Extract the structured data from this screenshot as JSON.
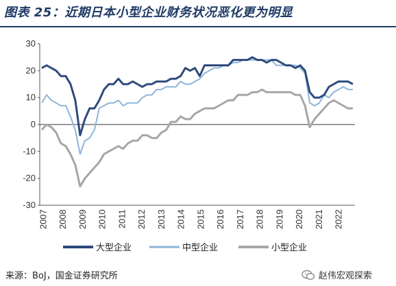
{
  "figure": {
    "title": "图表 25：近期日本小型企业财务状况恶化更为明显",
    "source": "来源：BoJ，国金证券研究所",
    "watermark": "赵伟宏观探索",
    "watermark_icon": "wechat-icon"
  },
  "chart_data": {
    "type": "line",
    "xlabel": "",
    "ylabel": "",
    "ylim": [
      -30,
      30
    ],
    "yticks": [
      -30,
      -20,
      -10,
      0,
      10,
      20,
      30
    ],
    "xticks": [
      "2007",
      "2008",
      "2009",
      "2010",
      "2011",
      "2012",
      "2013",
      "2014",
      "2015",
      "2016",
      "2017",
      "2018",
      "2019",
      "2020",
      "2021",
      "2022"
    ],
    "x_range": [
      "2007Q1",
      "2022Q2"
    ],
    "grid": false,
    "legend_position": "bottom",
    "series": [
      {
        "name": "大型企业",
        "color": "#2e4a7d",
        "width": 3,
        "values": [
          21,
          22,
          21,
          20,
          18,
          18,
          15,
          9,
          -4,
          2,
          6,
          6,
          9,
          13,
          15,
          15,
          17,
          15,
          15,
          16,
          15,
          14,
          15,
          15,
          16,
          16,
          16,
          17,
          17,
          18,
          21,
          20,
          21,
          18,
          22,
          22,
          22,
          22,
          22,
          22,
          24,
          24,
          24,
          24,
          25,
          24,
          24,
          23,
          24,
          24,
          23,
          22,
          22,
          21,
          22,
          20,
          12,
          10,
          10,
          11,
          14,
          15,
          16,
          16,
          16,
          15
        ]
      },
      {
        "name": "中型企业",
        "color": "#8fb4d9",
        "width": 2,
        "values": [
          8,
          11,
          9,
          8,
          7,
          7,
          3,
          -2,
          -11,
          -6,
          -5,
          -2,
          6,
          7,
          8,
          8,
          9,
          7,
          8,
          8,
          8,
          10,
          11,
          11,
          13,
          13,
          14,
          14,
          14,
          16,
          15,
          15,
          16,
          17,
          19,
          20,
          21,
          21,
          22,
          22,
          23,
          23,
          24,
          24,
          24,
          24,
          24,
          24,
          24,
          22,
          22,
          22,
          22,
          22,
          21,
          19,
          8,
          7,
          8,
          11,
          10,
          12,
          13,
          14,
          13,
          13
        ]
      },
      {
        "name": "小型企业",
        "color": "#a6a6a6",
        "width": 3,
        "values": [
          -2,
          0,
          -1,
          -3,
          -7,
          -8,
          -11,
          -15,
          -23,
          -20,
          -18,
          -16,
          -14,
          -11,
          -10,
          -9,
          -8,
          -9,
          -7,
          -6,
          -6,
          -4,
          -4,
          -5,
          -5,
          -3,
          -2,
          1,
          1,
          3,
          2,
          2,
          4,
          5,
          6,
          6,
          6,
          7,
          8,
          9,
          9,
          11,
          11,
          11,
          12,
          12,
          13,
          12,
          12,
          12,
          12,
          12,
          12,
          11,
          11,
          7,
          -1,
          2,
          4,
          6,
          8,
          9,
          8,
          7,
          6,
          6
        ]
      }
    ]
  }
}
